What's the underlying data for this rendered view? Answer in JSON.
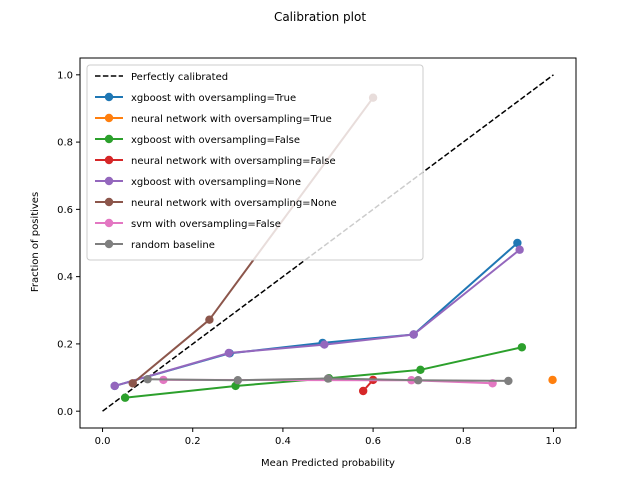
{
  "chart_data": {
    "type": "line",
    "title": "Calibration plot",
    "xlabel": "Mean Predicted probability",
    "ylabel": "Fraction of positives",
    "xlim": [
      -0.05,
      1.05
    ],
    "ylim": [
      -0.05,
      1.05
    ],
    "xticks": [
      0.0,
      0.2,
      0.4,
      0.6,
      0.8,
      1.0
    ],
    "xtick_labels": [
      "0.0",
      "0.2",
      "0.4",
      "0.6",
      "0.8",
      "1.0"
    ],
    "yticks": [
      0.0,
      0.2,
      0.4,
      0.6,
      0.8,
      1.0
    ],
    "ytick_labels": [
      "0.0",
      "0.2",
      "0.4",
      "0.6",
      "0.8",
      "1.0"
    ],
    "grid": false,
    "legend_position": "upper-left",
    "reference_line": {
      "name": "Perfectly calibrated",
      "x": [
        0.0,
        1.0
      ],
      "y": [
        0.0,
        1.0
      ],
      "color": "#000000",
      "style": "dashed"
    },
    "series": [
      {
        "name": "xgboost with oversampling=True",
        "color": "#1f77b4",
        "x": [
          0.027,
          0.282,
          0.488,
          0.69,
          0.92
        ],
        "y": [
          0.075,
          0.172,
          0.203,
          0.228,
          0.5
        ]
      },
      {
        "name": "neural network with oversampling=True",
        "color": "#ff7f0e",
        "x": [
          0.998
        ],
        "y": [
          0.093
        ]
      },
      {
        "name": "xgboost with oversampling=False",
        "color": "#2ca02c",
        "x": [
          0.05,
          0.295,
          0.502,
          0.705,
          0.93
        ],
        "y": [
          0.04,
          0.075,
          0.098,
          0.123,
          0.19
        ]
      },
      {
        "name": "neural network with oversampling=False",
        "color": "#d62728",
        "x": [
          0.578,
          0.6
        ],
        "y": [
          0.06,
          0.093
        ]
      },
      {
        "name": "xgboost with oversampling=None",
        "color": "#9467bd",
        "x": [
          0.027,
          0.28,
          0.492,
          0.69,
          0.925
        ],
        "y": [
          0.075,
          0.173,
          0.198,
          0.228,
          0.48
        ]
      },
      {
        "name": "neural network with oversampling=None",
        "color": "#8c564b",
        "x": [
          0.067,
          0.237,
          0.6
        ],
        "y": [
          0.083,
          0.272,
          0.932
        ]
      },
      {
        "name": "svm with oversampling=False",
        "color": "#e377c2",
        "x": [
          0.135,
          0.685,
          0.865
        ],
        "y": [
          0.093,
          0.092,
          0.083
        ]
      },
      {
        "name": "random baseline",
        "color": "#7f7f7f",
        "x": [
          0.1,
          0.3,
          0.5,
          0.7,
          0.9
        ],
        "y": [
          0.095,
          0.092,
          0.097,
          0.092,
          0.09
        ]
      }
    ]
  }
}
